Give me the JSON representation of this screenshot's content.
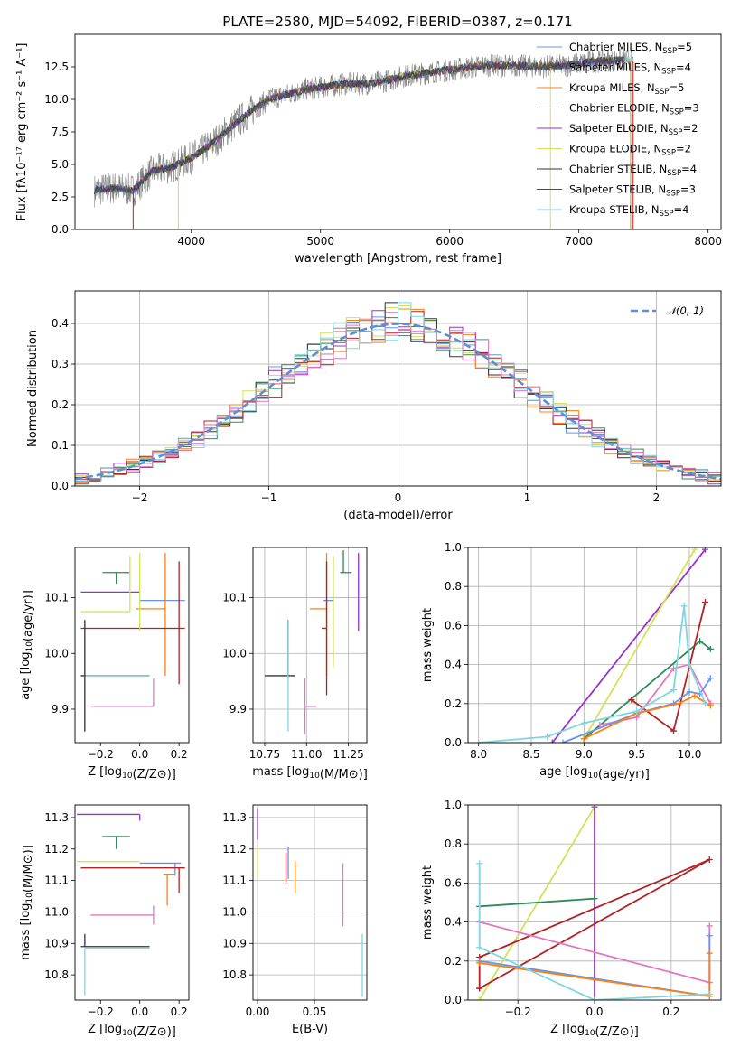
{
  "title": "PLATE=2580, MJD=54092, FIBERID=0387, z=0.171",
  "models": [
    {
      "name": "Chabrier MILES",
      "n": "5",
      "color": "#6495ed"
    },
    {
      "name": "Salpeter MILES",
      "n": "4",
      "color": "#555555"
    },
    {
      "name": "Kroupa MILES",
      "n": "5",
      "color": "#ff7f0e"
    },
    {
      "name": "Chabrier ELODIE",
      "n": "3",
      "color": "#2e8b57"
    },
    {
      "name": "Salpeter ELODIE",
      "n": "2",
      "color": "#9932cc"
    },
    {
      "name": "Kroupa ELODIE",
      "n": "2",
      "color": "#d4e157"
    },
    {
      "name": "Chabrier STELIB",
      "n": "4",
      "color": "#333333"
    },
    {
      "name": "Salpeter STELIB",
      "n": "3",
      "color": "#b22222"
    },
    {
      "name": "Kroupa STELIB",
      "n": "4",
      "color": "#7fd6e0"
    }
  ],
  "extra_colors": {
    "pink": "#e377c2",
    "data": "#808080",
    "normal": "#5b8fd6",
    "grid": "#b0b0b0"
  },
  "chart_data": [
    {
      "id": "spectrum",
      "type": "line",
      "xlabel": "wavelength [Angstrom, rest frame]",
      "ylabel": "Flux [fλ10⁻¹⁷ erg cm⁻² s⁻¹ A⁻¹]",
      "xlim": [
        3100,
        8100
      ],
      "ylim": [
        0,
        15
      ],
      "xticks": [
        4000,
        5000,
        6000,
        7000,
        8000
      ],
      "yticks": [
        0.0,
        2.5,
        5.0,
        7.5,
        10.0,
        12.5
      ],
      "legend_suffix": "N",
      "legend_sub": "SSP",
      "continuum": {
        "x": [
          3250,
          3400,
          3550,
          3700,
          3850,
          4000,
          4150,
          4300,
          4450,
          4600,
          4750,
          4900,
          5050,
          5200,
          5350,
          5500,
          5650,
          5800,
          5950,
          6100,
          6300,
          6500,
          6700,
          6900,
          7100,
          7300,
          7420
        ],
        "y": [
          3.0,
          3.2,
          3.0,
          4.5,
          4.8,
          5.5,
          6.5,
          7.8,
          9.0,
          10.0,
          10.4,
          10.8,
          11.0,
          11.2,
          11.2,
          11.4,
          11.8,
          12.0,
          12.2,
          12.4,
          12.6,
          12.6,
          12.5,
          12.6,
          12.9,
          13.0,
          13.0
        ]
      }
    },
    {
      "id": "residuals",
      "type": "histogram",
      "xlabel": "(data-model)/error",
      "ylabel": "Normed distribution",
      "xlim": [
        -2.5,
        2.5
      ],
      "ylim": [
        0,
        0.48
      ],
      "xticks": [
        -2,
        -1,
        0,
        1,
        2
      ],
      "yticks": [
        0.0,
        0.1,
        0.2,
        0.3,
        0.4
      ],
      "legend": "𝒩(0, 1)",
      "bin_width": 0.1,
      "normal_curve": {
        "mean": 0,
        "sigma": 1
      }
    },
    {
      "id": "age-vs-Z",
      "type": "errorbar",
      "xlabel": "Z [log10(Z/Z⊙)]",
      "ylabel": "age  [log10(age/yr)]",
      "xlim": [
        -0.33,
        0.25
      ],
      "ylim": [
        9.84,
        10.19
      ],
      "xticks": [
        -0.2,
        0.0,
        0.2
      ],
      "yticks": [
        9.9,
        10.0,
        10.1
      ],
      "points": [
        {
          "c": 0,
          "x": 0.09,
          "y": 10.095,
          "xe": [
            0.09,
            0.14
          ],
          "ye": [
            0.0,
            0.0
          ]
        },
        {
          "c": 2,
          "x": 0.13,
          "y": 10.08,
          "xe": [
            0.15,
            0.0
          ],
          "ye": [
            0.12,
            0.1
          ]
        },
        {
          "c": 3,
          "x": -0.12,
          "y": 10.145,
          "xe": [
            0.07,
            0.07
          ],
          "ye": [
            0.02,
            0.0
          ]
        },
        {
          "c": 4,
          "x": -0.3,
          "y": 10.11,
          "xe": [
            0.0,
            0.3
          ],
          "ye": [
            0.0,
            0.0
          ]
        },
        {
          "c": 5,
          "x": -0.05,
          "y": 10.075,
          "xe": [
            0.25,
            0.0
          ],
          "ye": [
            0.0,
            0.1
          ]
        },
        {
          "c": 6,
          "x": -0.28,
          "y": 9.96,
          "xe": [
            0.02,
            0.33
          ],
          "ye": [
            0.0,
            0.0
          ]
        },
        {
          "c": 7,
          "x": 0.2,
          "y": 10.045,
          "xe": [
            0.5,
            0.03
          ],
          "ye": [
            0.1,
            0.12
          ]
        },
        {
          "c": 8,
          "x": -0.28,
          "y": 9.96,
          "xe": [
            0.0,
            0.33
          ],
          "ye": [
            0.1,
            0.1
          ]
        },
        {
          "c": "pink",
          "x": 0.07,
          "y": 9.905,
          "xe": [
            0.32,
            0.0
          ],
          "ye": [
            0.0,
            0.05
          ]
        },
        {
          "c": 5,
          "x": 0.0,
          "y": 10.04,
          "xe": [
            0.0,
            0.0
          ],
          "ye": [
            0.0,
            0.14
          ]
        },
        {
          "c": 6,
          "x": -0.28,
          "y": 9.96,
          "xe": [
            0.0,
            0.0
          ],
          "ye": [
            0.1,
            0.1
          ]
        }
      ]
    },
    {
      "id": "age-vs-mass",
      "type": "errorbar",
      "xlabel": "mass [log10(M/M⊙)]",
      "ylabel": "",
      "xlim": [
        10.68,
        11.36
      ],
      "ylim": [
        9.84,
        10.19
      ],
      "xticks": [
        10.75,
        11.0,
        11.25
      ],
      "yticks": [
        9.9,
        10.0,
        10.1
      ],
      "points": [
        {
          "c": 0,
          "x": 11.16,
          "y": 10.095,
          "xe": [
            0.06,
            0.0
          ],
          "ye": [
            0.0,
            0.0
          ]
        },
        {
          "c": 2,
          "x": 11.12,
          "y": 10.08,
          "xe": [
            0.1,
            0.0
          ],
          "ye": [
            0.12,
            0.1
          ]
        },
        {
          "c": 3,
          "x": 11.24,
          "y": 10.145,
          "xe": [
            0.04,
            0.03
          ],
          "ye": [
            0.0,
            0.0
          ]
        },
        {
          "c": 4,
          "x": 11.31,
          "y": 10.11,
          "xe": [
            0.0,
            0.0
          ],
          "ye": [
            0.07,
            0.07
          ]
        },
        {
          "c": 5,
          "x": 11.16,
          "y": 10.075,
          "xe": [
            0.0,
            0.0
          ],
          "ye": [
            0.1,
            0.1
          ]
        },
        {
          "c": 6,
          "x": 10.89,
          "y": 9.96,
          "xe": [
            0.14,
            0.04
          ],
          "ye": [
            0.0,
            0.1
          ]
        },
        {
          "c": 7,
          "x": 11.12,
          "y": 10.045,
          "xe": [
            0.03,
            0.0
          ],
          "ye": [
            0.12,
            0.12
          ]
        },
        {
          "c": 8,
          "x": 10.89,
          "y": 9.96,
          "xe": [
            0.0,
            0.0
          ],
          "ye": [
            0.1,
            0.1
          ]
        },
        {
          "c": "pink",
          "x": 10.99,
          "y": 9.905,
          "xe": [
            0.0,
            0.07
          ],
          "ye": [
            0.05,
            0.05
          ]
        },
        {
          "c": 3,
          "x": 11.22,
          "y": 10.145,
          "xe": [
            0.0,
            0.0
          ],
          "ye": [
            0.0,
            0.04
          ]
        }
      ]
    },
    {
      "id": "mass-weight-vs-age",
      "type": "line",
      "xlabel": "age  [log10(age/yr)]",
      "ylabel": "mass weight",
      "xlim": [
        7.9,
        10.3
      ],
      "ylim": [
        0,
        1
      ],
      "xticks": [
        8.0,
        8.5,
        9.0,
        9.5,
        10.0
      ],
      "yticks": [
        0.0,
        0.2,
        0.4,
        0.6,
        0.8,
        1.0
      ],
      "series": [
        {
          "c": 4,
          "x": [
            8.7,
            10.15
          ],
          "y": [
            0.0,
            0.99
          ]
        },
        {
          "c": 5,
          "x": [
            9.0,
            10.05
          ],
          "y": [
            0.02,
            0.99
          ]
        },
        {
          "c": 3,
          "x": [
            9.0,
            10.1,
            10.2
          ],
          "y": [
            0.02,
            0.52,
            0.48
          ]
        },
        {
          "c": 7,
          "x": [
            9.45,
            9.85,
            10.15
          ],
          "y": [
            0.22,
            0.06,
            0.72
          ]
        },
        {
          "c": "pink",
          "x": [
            9.15,
            9.5,
            9.85,
            10.0,
            10.2
          ],
          "y": [
            0.09,
            0.13,
            0.38,
            0.4,
            0.2
          ]
        },
        {
          "c": 0,
          "x": [
            8.8,
            9.5,
            9.85,
            10.0,
            10.1,
            10.2
          ],
          "y": [
            0.0,
            0.15,
            0.2,
            0.26,
            0.25,
            0.33
          ]
        },
        {
          "c": 2,
          "x": [
            9.0,
            9.5,
            9.9,
            10.05,
            10.2
          ],
          "y": [
            0.02,
            0.15,
            0.2,
            0.24,
            0.19
          ]
        },
        {
          "c": 8,
          "x": [
            8.0,
            8.65,
            9.0,
            9.5,
            9.85,
            9.95,
            10.0,
            10.15
          ],
          "y": [
            0.0,
            0.03,
            0.1,
            0.16,
            0.27,
            0.7,
            0.4,
            0.2
          ]
        }
      ]
    },
    {
      "id": "mass-vs-Z",
      "type": "errorbar",
      "xlabel": "Z [log10(Z/Z⊙)]",
      "ylabel": "mass [log10(M/M⊙)]",
      "xlim": [
        -0.33,
        0.25
      ],
      "ylim": [
        10.72,
        11.34
      ],
      "xticks": [
        -0.2,
        0.0,
        0.2
      ],
      "yticks": [
        10.8,
        10.9,
        11.0,
        11.1,
        11.2,
        11.3
      ],
      "points": [
        {
          "c": 4,
          "x": 0.0,
          "y": 11.31,
          "xe": [
            0.32,
            0.0
          ],
          "ye": [
            0.02,
            0.0
          ]
        },
        {
          "c": 3,
          "x": -0.12,
          "y": 11.24,
          "xe": [
            0.07,
            0.07
          ],
          "ye": [
            0.04,
            0.0
          ]
        },
        {
          "c": 5,
          "x": -0.05,
          "y": 11.16,
          "xe": [
            0.27,
            0.05
          ],
          "ye": [
            0.0,
            0.0
          ]
        },
        {
          "c": 0,
          "x": 0.18,
          "y": 11.155,
          "xe": [
            0.18,
            0.03
          ],
          "ye": [
            0.04,
            0.0
          ]
        },
        {
          "c": 7,
          "x": 0.2,
          "y": 11.14,
          "xe": [
            0.5,
            0.03
          ],
          "ye": [
            0.08,
            0.0
          ]
        },
        {
          "c": 2,
          "x": 0.14,
          "y": 11.12,
          "xe": [
            0.02,
            0.04
          ],
          "ye": [
            0.1,
            0.0
          ]
        },
        {
          "c": "pink",
          "x": 0.07,
          "y": 10.99,
          "xe": [
            0.32,
            0.0
          ],
          "ye": [
            0.03,
            0.03
          ]
        },
        {
          "c": 6,
          "x": -0.28,
          "y": 10.89,
          "xe": [
            0.02,
            0.33
          ],
          "ye": [
            0.0,
            0.04
          ]
        },
        {
          "c": 8,
          "x": -0.28,
          "y": 10.885,
          "xe": [
            0.0,
            0.33
          ],
          "ye": [
            0.15,
            0.0
          ]
        }
      ]
    },
    {
      "id": "mass-vs-ebv",
      "type": "errorbar",
      "xlabel": "E(B-V)",
      "ylabel": "",
      "xlim": [
        -0.004,
        0.096
      ],
      "ylim": [
        10.72,
        11.34
      ],
      "xticks": [
        0.0,
        0.05
      ],
      "yticks": [
        10.8,
        10.9,
        11.0,
        11.1,
        11.2,
        11.3
      ],
      "points": [
        {
          "c": 4,
          "x": 0.0,
          "y": 11.28,
          "xe": [
            0.0,
            0.0
          ],
          "ye": [
            0.05,
            0.05
          ]
        },
        {
          "c": 5,
          "x": 0.0,
          "y": 11.16,
          "xe": [
            0.0,
            0.0
          ],
          "ye": [
            0.05,
            0.05
          ]
        },
        {
          "c": 0,
          "x": 0.027,
          "y": 11.155,
          "xe": [
            0.0,
            0.0
          ],
          "ye": [
            0.05,
            0.05
          ]
        },
        {
          "c": 7,
          "x": 0.025,
          "y": 11.14,
          "xe": [
            0.0,
            0.0
          ],
          "ye": [
            0.05,
            0.05
          ]
        },
        {
          "c": 2,
          "x": 0.033,
          "y": 11.11,
          "xe": [
            0.0,
            0.0
          ],
          "ye": [
            0.05,
            0.05
          ]
        },
        {
          "c": "pink",
          "x": 0.075,
          "y": 11.055,
          "xe": [
            0.0,
            0.0
          ],
          "ye": [
            0.1,
            0.1
          ]
        },
        {
          "c": 8,
          "x": 0.092,
          "y": 10.83,
          "xe": [
            0.0,
            0.0
          ],
          "ye": [
            0.1,
            0.1
          ]
        }
      ]
    },
    {
      "id": "mass-weight-vs-Z",
      "type": "line",
      "xlabel": "Z [log10(Z/Z⊙)]",
      "ylabel": "mass weight",
      "xlim": [
        -0.33,
        0.33
      ],
      "ylim": [
        0,
        1
      ],
      "xticks": [
        -0.2,
        0.0,
        0.2
      ],
      "yticks": [
        0.0,
        0.2,
        0.4,
        0.6,
        0.8,
        1.0
      ],
      "series": [
        {
          "c": 5,
          "x": [
            -0.3,
            0.0
          ],
          "y": [
            0.0,
            0.99
          ]
        },
        {
          "c": 4,
          "x": [
            0.0,
            0.0
          ],
          "y": [
            0.0,
            0.99
          ]
        },
        {
          "c": 7,
          "x": [
            -0.3,
            0.3,
            -0.3,
            -0.3
          ],
          "y": [
            0.06,
            0.72,
            0.22,
            0.06
          ]
        },
        {
          "c": 3,
          "x": [
            -0.3,
            0.0
          ],
          "y": [
            0.48,
            0.52
          ]
        },
        {
          "c": "pink",
          "x": [
            -0.3,
            0.3,
            0.3
          ],
          "y": [
            0.4,
            0.09,
            0.38
          ]
        },
        {
          "c": 0,
          "x": [
            -0.3,
            0.3,
            0.3
          ],
          "y": [
            0.2,
            0.02,
            0.33
          ]
        },
        {
          "c": 2,
          "x": [
            -0.3,
            0.3,
            0.3
          ],
          "y": [
            0.19,
            0.02,
            0.24
          ]
        },
        {
          "c": 8,
          "x": [
            -0.3,
            -0.3,
            0.0,
            0.3
          ],
          "y": [
            0.7,
            0.27,
            0.0,
            0.03
          ]
        }
      ]
    }
  ]
}
